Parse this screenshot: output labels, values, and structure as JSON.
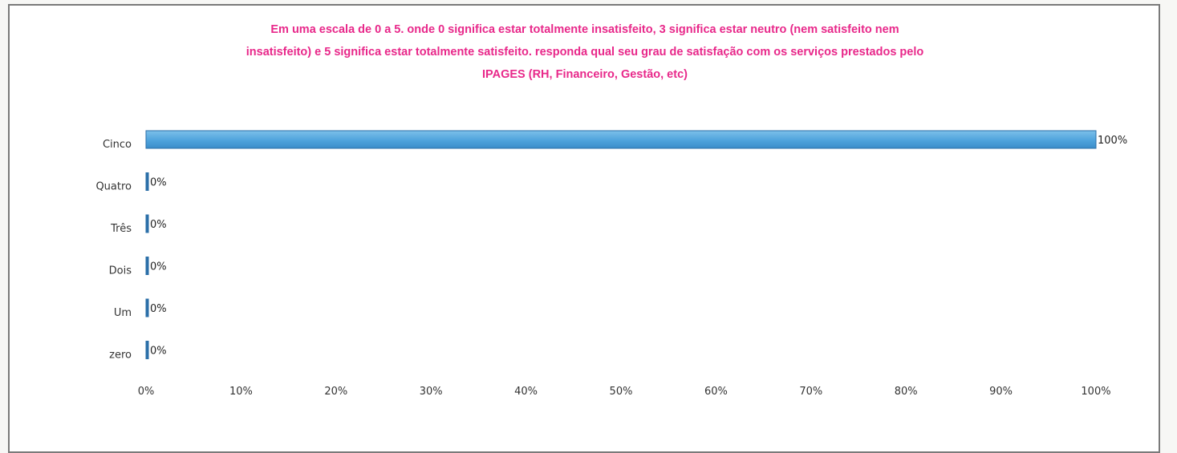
{
  "colors": {
    "bar": "#4fa3dc",
    "bar_edge": "#2b6fa8",
    "title": "#e8288a",
    "text": "#333333"
  },
  "chart_data": {
    "type": "bar",
    "orientation": "horizontal",
    "title": "Em uma escala de 0 a 5. onde 0 significa estar totalmente insatisfeito, 3 significa estar neutro (nem satisfeito nem insatisfeito) e 5 significa estar totalmente satisfeito. responda qual seu grau de satisfação com os serviços prestados pelo IPAGES (RH, Financeiro, Gestão, etc)",
    "title_lines": [
      "Em uma escala de 0 a 5. onde 0 significa estar totalmente insatisfeito, 3 significa estar neutro (nem satisfeito nem",
      "insatisfeito) e 5 significa estar totalmente satisfeito. responda qual seu grau de satisfação com os serviços prestados pelo",
      "IPAGES (RH, Financeiro, Gestão, etc)"
    ],
    "categories": [
      "Cinco",
      "Quatro",
      "Três",
      "Dois",
      "Um",
      "zero"
    ],
    "values": [
      100,
      0,
      0,
      0,
      0,
      0
    ],
    "data_labels": [
      "100%",
      "0%",
      "0%",
      "0%",
      "0%",
      "0%"
    ],
    "xlim": [
      0,
      100
    ],
    "x_ticks": [
      "0%",
      "10%",
      "20%",
      "30%",
      "40%",
      "50%",
      "60%",
      "70%",
      "80%",
      "90%",
      "100%"
    ],
    "xlabel": "",
    "ylabel": "",
    "grid": false,
    "legend": "none"
  }
}
